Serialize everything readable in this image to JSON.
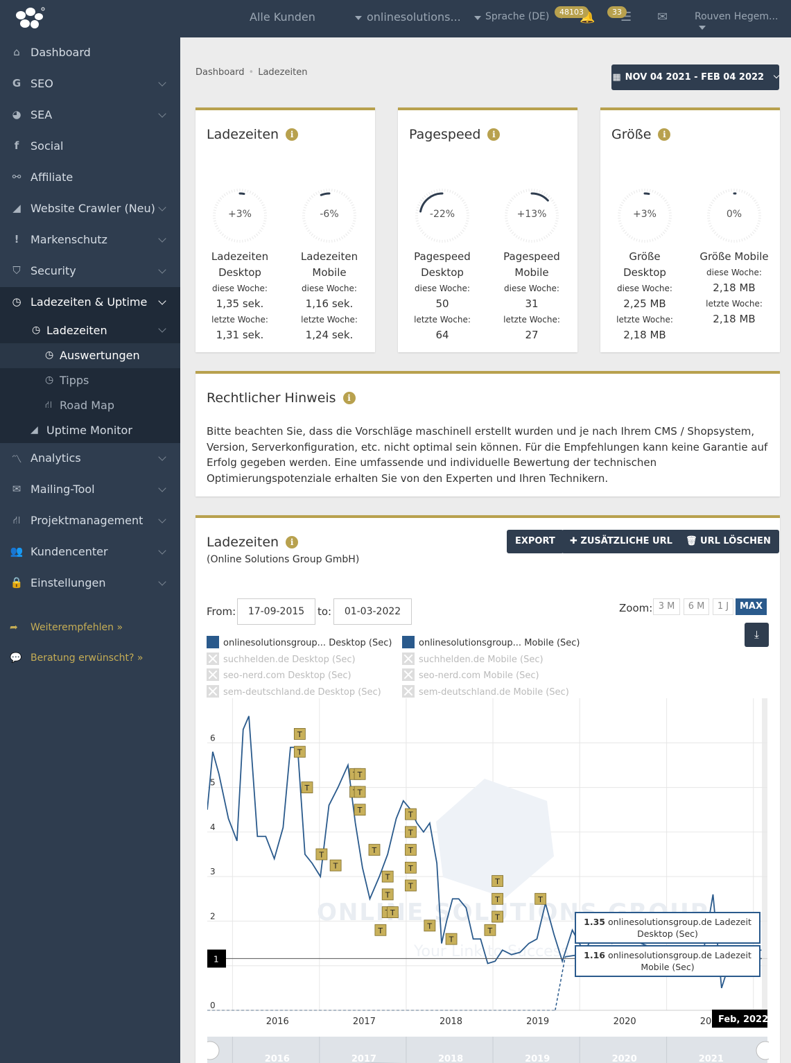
{
  "topbar": {
    "customer_select": "Alle Kunden",
    "project_select": "onlinesolutions...",
    "language": "Sprache (DE)",
    "notifications_count": "48103",
    "tasks_count": "33",
    "user_name": "Rouven Hegem..."
  },
  "sidebar": {
    "items": [
      {
        "label": "Dashboard",
        "icon": "home-icon"
      },
      {
        "label": "SEO",
        "icon": "google-icon"
      },
      {
        "label": "SEA",
        "icon": "pie-chart-icon"
      },
      {
        "label": "Social",
        "icon": "facebook-icon"
      },
      {
        "label": "Affiliate",
        "icon": "handshake-icon"
      },
      {
        "label": "Website Crawler (Neu)",
        "icon": "area-chart-icon"
      },
      {
        "label": "Markenschutz",
        "icon": "exclamation-icon"
      },
      {
        "label": "Security",
        "icon": "shield-icon"
      },
      {
        "label": "Ladezeiten & Uptime",
        "icon": "clock-icon"
      },
      {
        "label": "Analytics",
        "icon": "line-chart-icon"
      },
      {
        "label": "Mailing-Tool",
        "icon": "envelope-icon"
      },
      {
        "label": "Projektmanagement",
        "icon": "road-icon"
      },
      {
        "label": "Kundencenter",
        "icon": "users-icon"
      },
      {
        "label": "Einstellungen",
        "icon": "lock-icon"
      }
    ],
    "sub_items": [
      {
        "label": "Ladezeiten"
      },
      {
        "label": "Auswertungen"
      },
      {
        "label": "Tipps"
      },
      {
        "label": "Road Map"
      },
      {
        "label": "Uptime Monitor"
      }
    ],
    "recommend": "Weiterempfehlen »",
    "consult": "Beratung erwünscht? »"
  },
  "breadcrumb": {
    "home": "Dashboard",
    "current": "Ladezeiten"
  },
  "date_range": "NOV 04 2021 - FEB 04 2022",
  "cards": [
    {
      "title": "Ladezeiten",
      "metrics": [
        {
          "pct": "+3%",
          "level": 0.03,
          "name1": "Ladezeiten",
          "name2": "Desktop",
          "this_label": "diese Woche:",
          "this_val": "1,35 sek.",
          "last_label": "letzte Woche:",
          "last_val": "1,31 sek."
        },
        {
          "pct": "-6%",
          "level": -0.06,
          "name1": "Ladezeiten",
          "name2": "Mobile",
          "this_label": "diese Woche:",
          "this_val": "1,16 sek.",
          "last_label": "letzte Woche:",
          "last_val": "1,24 sek."
        }
      ]
    },
    {
      "title": "Pagespeed",
      "metrics": [
        {
          "pct": "-22%",
          "level": -0.22,
          "name1": "Pagespeed",
          "name2": "Desktop",
          "this_label": "diese Woche:",
          "this_val": "50",
          "last_label": "letzte Woche:",
          "last_val": "64"
        },
        {
          "pct": "+13%",
          "level": 0.13,
          "name1": "Pagespeed",
          "name2": "Mobile",
          "this_label": "diese Woche:",
          "this_val": "31",
          "last_label": "letzte Woche:",
          "last_val": "27"
        }
      ]
    },
    {
      "title": "Größe",
      "metrics": [
        {
          "pct": "+3%",
          "level": 0.03,
          "name1": "Größe",
          "name2": "Desktop",
          "this_label": "diese Woche:",
          "this_val": "2,25 MB",
          "last_label": "letzte Woche:",
          "last_val": "2,18 MB"
        },
        {
          "pct": "0%",
          "level": 0,
          "name1": "Größe Mobile",
          "name2": "",
          "this_label": "diese Woche:",
          "this_val": "2,18 MB",
          "last_label": "letzte Woche:",
          "last_val": "2,18 MB"
        }
      ]
    }
  ],
  "legal": {
    "title": "Rechtlicher Hinweis",
    "text": "Bitte beachten Sie, dass die Vorschläge maschinell erstellt wurden und je nach Ihrem CMS / Shopsystem, Version, Serverkonfiguration, etc. nicht optimal sein können. Für die Empfehlungen kann keine Garantie auf Erfolg gegeben werden. Eine umfassende und individuelle Bewertung der technischen Optimierungspotenziale erhalten Sie von den Experten und Ihren Technikern."
  },
  "chart_panel": {
    "title": "Ladezeiten",
    "subtitle": "(Online Solutions Group GmbH)",
    "export": "EXPORT",
    "add_url": "ZUSÄTZLICHE URL",
    "delete_url": "URL LÖSCHEN",
    "from_label": "From:",
    "from_value": "17-09-2015",
    "to_label": "to:",
    "to_value": "01-03-2022",
    "zoom_label": "Zoom:",
    "zoom_options": [
      "3 M",
      "6 M",
      "1 J",
      "MAX"
    ],
    "zoom_selected": "MAX",
    "legend": [
      {
        "name": "onlinesolutionsgroup... Desktop (Sec)",
        "visible": true
      },
      {
        "name": "onlinesolutionsgroup... Mobile (Sec)",
        "visible": true
      },
      {
        "name": "suchhelden.de Desktop (Sec)",
        "visible": false
      },
      {
        "name": "suchhelden.de Mobile (Sec)",
        "visible": false
      },
      {
        "name": "seo-nerd.com Desktop (Sec)",
        "visible": false
      },
      {
        "name": "seo-nerd.com Mobile (Sec)",
        "visible": false
      },
      {
        "name": "sem-deutschland.de Desktop (Sec)",
        "visible": false
      },
      {
        "name": "sem-deutschland.de Mobile (Sec)",
        "visible": false
      }
    ],
    "tooltip_desktop_value": "1.35",
    "tooltip_desktop_label": "onlinesolutionsgroup.de Ladezeit Desktop (Sec)",
    "tooltip_mobile_value": "1.16",
    "tooltip_mobile_label": "onlinesolutionsgroup.de Ladezeit Mobile (Sec)",
    "crosshair_label": "Feb, 2022",
    "y_flag": "1",
    "flag_text": "T",
    "watermark": "ONLINE SOLUTIONS GROUP",
    "watermark_sub": "Your Link to Success",
    "navigator_years": [
      "2016",
      "2017",
      "2018",
      "2019",
      "2020",
      "2021"
    ]
  },
  "chart_data": {
    "type": "line",
    "ylim": [
      0,
      7
    ],
    "yticks": [
      "0",
      "1",
      "2",
      "3",
      "4",
      "5",
      "6"
    ],
    "xticks": [
      "2016",
      "2017",
      "2018",
      "2019",
      "2020",
      "20"
    ],
    "x_start": "2015-09-17",
    "x_end": "2022-03-01",
    "series": [
      {
        "name": "onlinesolutionsgroup... Desktop (Sec)",
        "color": "#2a5a8c",
        "points": [
          [
            "2015-09-17",
            4.5
          ],
          [
            "2015-10-10",
            5.8
          ],
          [
            "2015-11-05",
            5.3
          ],
          [
            "2015-12-15",
            4.3
          ],
          [
            "2016-01-20",
            3.8
          ],
          [
            "2016-02-15",
            6.3
          ],
          [
            "2016-03-10",
            6.6
          ],
          [
            "2016-04-15",
            3.9
          ],
          [
            "2016-05-20",
            3.9
          ],
          [
            "2016-06-25",
            3.4
          ],
          [
            "2016-08-01",
            4.1
          ],
          [
            "2016-09-01",
            5.9
          ],
          [
            "2016-10-01",
            5.9
          ],
          [
            "2016-11-01",
            3.5
          ],
          [
            "2016-12-01",
            3.3
          ],
          [
            "2017-01-05",
            3.0
          ],
          [
            "2017-02-10",
            4.6
          ],
          [
            "2017-03-20",
            5.0
          ],
          [
            "2017-05-01",
            5.5
          ],
          [
            "2017-06-01",
            4.2
          ],
          [
            "2017-07-01",
            3.2
          ],
          [
            "2017-08-01",
            2.5
          ],
          [
            "2017-09-10",
            3.0
          ],
          [
            "2017-10-15",
            3.5
          ],
          [
            "2017-11-20",
            4.3
          ],
          [
            "2017-12-20",
            4.7
          ],
          [
            "2018-01-20",
            4.5
          ],
          [
            "2018-02-15",
            4.2
          ],
          [
            "2018-03-15",
            4.0
          ],
          [
            "2018-04-10",
            4.2
          ],
          [
            "2018-05-10",
            3.3
          ],
          [
            "2018-05-30",
            1.5
          ],
          [
            "2018-06-20",
            2.0
          ],
          [
            "2018-07-15",
            2.5
          ],
          [
            "2018-08-10",
            2.5
          ],
          [
            "2018-09-10",
            2.3
          ],
          [
            "2018-10-10",
            1.6
          ],
          [
            "2018-11-10",
            1.6
          ],
          [
            "2018-12-10",
            1.05
          ],
          [
            "2019-01-10",
            1.1
          ],
          [
            "2019-02-10",
            1.35
          ],
          [
            "2019-03-20",
            1.25
          ],
          [
            "2019-04-25",
            1.3
          ],
          [
            "2019-06-01",
            1.5
          ],
          [
            "2019-07-05",
            1.6
          ],
          [
            "2019-08-10",
            2.4
          ],
          [
            "2019-09-15",
            1.7
          ],
          [
            "2019-10-20",
            1.1
          ],
          [
            "2019-12-01",
            1.8
          ],
          [
            "2020-01-20",
            1.3
          ],
          [
            "2020-03-10",
            1.8
          ],
          [
            "2020-05-15",
            1.5
          ],
          [
            "2020-08-01",
            1.6
          ],
          [
            "2020-11-01",
            1.4
          ],
          [
            "2021-02-01",
            1.3
          ],
          [
            "2021-05-01",
            1.25
          ],
          [
            "2021-08-01",
            1.35
          ],
          [
            "2022-02-04",
            1.35
          ]
        ]
      },
      {
        "name": "onlinesolutionsgroup... Mobile (Sec)",
        "color": "#2a5a8c",
        "points": [
          [
            "2015-09-17",
            0.0
          ],
          [
            "2019-09-20",
            0.0
          ],
          [
            "2019-11-01",
            1.2
          ],
          [
            "2020-03-01",
            1.3
          ],
          [
            "2020-07-01",
            1.1
          ],
          [
            "2020-11-01",
            1.2
          ],
          [
            "2021-03-01",
            1.0
          ],
          [
            "2021-06-01",
            1.2
          ],
          [
            "2021-07-15",
            2.6
          ],
          [
            "2021-08-20",
            0.5
          ],
          [
            "2021-10-01",
            1.2
          ],
          [
            "2022-02-04",
            1.16
          ]
        ]
      }
    ],
    "flags": [
      [
        "2016-10-10",
        6.2
      ],
      [
        "2016-10-10",
        5.8
      ],
      [
        "2016-11-10",
        5.0
      ],
      [
        "2017-01-10",
        3.5
      ],
      [
        "2017-03-10",
        3.25
      ],
      [
        "2017-06-01",
        5.3
      ],
      [
        "2017-06-20",
        5.3
      ],
      [
        "2017-06-01",
        4.9
      ],
      [
        "2017-06-20",
        4.9
      ],
      [
        "2017-06-20",
        4.5
      ],
      [
        "2017-08-20",
        3.6
      ],
      [
        "2017-09-15",
        1.8
      ],
      [
        "2017-10-15",
        3.0
      ],
      [
        "2017-10-15",
        2.6
      ],
      [
        "2017-10-15",
        2.2
      ],
      [
        "2017-11-05",
        2.2
      ],
      [
        "2018-01-20",
        4.4
      ],
      [
        "2018-01-20",
        4.0
      ],
      [
        "2018-01-20",
        3.6
      ],
      [
        "2018-01-20",
        3.2
      ],
      [
        "2018-01-20",
        2.8
      ],
      [
        "2018-04-10",
        1.9
      ],
      [
        "2018-07-10",
        1.6
      ],
      [
        "2018-12-20",
        1.8
      ],
      [
        "2019-01-20",
        2.9
      ],
      [
        "2019-01-20",
        2.5
      ],
      [
        "2019-01-20",
        2.1
      ],
      [
        "2019-07-20",
        2.5
      ]
    ]
  }
}
